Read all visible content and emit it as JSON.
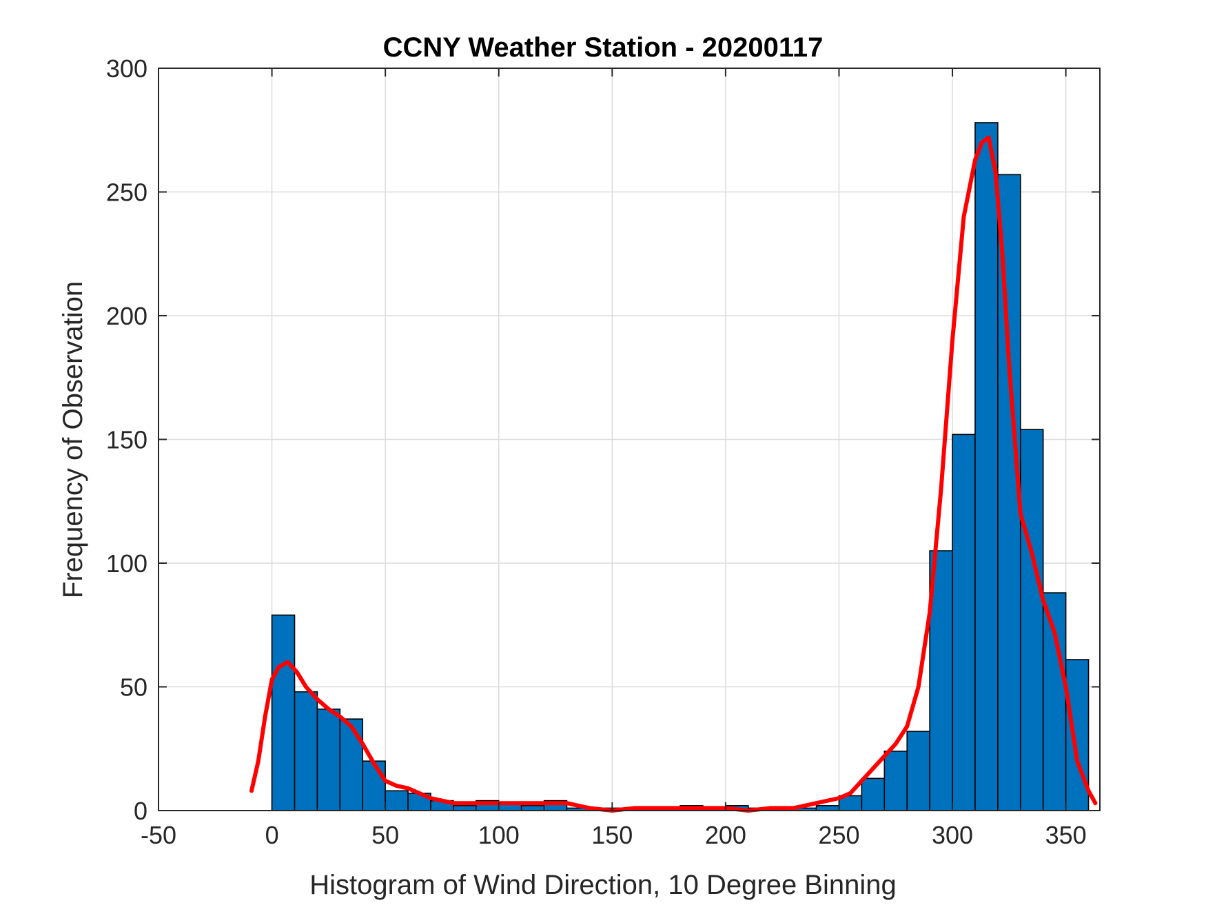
{
  "chart_data": {
    "type": "bar",
    "title": "CCNY Weather Station - 20200117",
    "xlabel": "Histogram of Wind Direction, 10 Degree Binning",
    "ylabel": "Frequency of Observation",
    "xlim": [
      -50,
      365
    ],
    "ylim": [
      0,
      300
    ],
    "xticks": [
      -50,
      0,
      50,
      100,
      150,
      200,
      250,
      300,
      350
    ],
    "yticks": [
      0,
      50,
      100,
      150,
      200,
      250,
      300
    ],
    "grid": true,
    "bin_width": 10,
    "bins": [
      {
        "x0": 0,
        "x1": 10,
        "value": 79
      },
      {
        "x0": 10,
        "x1": 20,
        "value": 48
      },
      {
        "x0": 20,
        "x1": 30,
        "value": 41
      },
      {
        "x0": 30,
        "x1": 40,
        "value": 37
      },
      {
        "x0": 40,
        "x1": 50,
        "value": 20
      },
      {
        "x0": 50,
        "x1": 60,
        "value": 8
      },
      {
        "x0": 60,
        "x1": 70,
        "value": 7
      },
      {
        "x0": 70,
        "x1": 80,
        "value": 4
      },
      {
        "x0": 80,
        "x1": 90,
        "value": 2
      },
      {
        "x0": 90,
        "x1": 100,
        "value": 4
      },
      {
        "x0": 100,
        "x1": 110,
        "value": 3
      },
      {
        "x0": 110,
        "x1": 120,
        "value": 2
      },
      {
        "x0": 120,
        "x1": 130,
        "value": 4
      },
      {
        "x0": 130,
        "x1": 140,
        "value": 1
      },
      {
        "x0": 140,
        "x1": 150,
        "value": 1
      },
      {
        "x0": 150,
        "x1": 160,
        "value": 1
      },
      {
        "x0": 160,
        "x1": 170,
        "value": 1
      },
      {
        "x0": 170,
        "x1": 180,
        "value": 1
      },
      {
        "x0": 180,
        "x1": 190,
        "value": 2
      },
      {
        "x0": 190,
        "x1": 200,
        "value": 1
      },
      {
        "x0": 200,
        "x1": 210,
        "value": 2
      },
      {
        "x0": 210,
        "x1": 220,
        "value": 1
      },
      {
        "x0": 220,
        "x1": 230,
        "value": 1
      },
      {
        "x0": 230,
        "x1": 240,
        "value": 1
      },
      {
        "x0": 240,
        "x1": 250,
        "value": 2
      },
      {
        "x0": 250,
        "x1": 260,
        "value": 6
      },
      {
        "x0": 260,
        "x1": 270,
        "value": 13
      },
      {
        "x0": 270,
        "x1": 280,
        "value": 24
      },
      {
        "x0": 280,
        "x1": 290,
        "value": 32
      },
      {
        "x0": 290,
        "x1": 300,
        "value": 105
      },
      {
        "x0": 300,
        "x1": 310,
        "value": 152
      },
      {
        "x0": 310,
        "x1": 320,
        "value": 278
      },
      {
        "x0": 320,
        "x1": 330,
        "value": 257
      },
      {
        "x0": 330,
        "x1": 340,
        "value": 154
      },
      {
        "x0": 340,
        "x1": 350,
        "value": 88
      },
      {
        "x0": 350,
        "x1": 360,
        "value": 61
      }
    ],
    "bar_color": "#0072BD",
    "curve_color": "#FF0000",
    "curve": {
      "x": [
        -9,
        -6,
        -3,
        0,
        3,
        7,
        11,
        15,
        20,
        25,
        30,
        35,
        40,
        45,
        50,
        55,
        60,
        65,
        70,
        80,
        90,
        100,
        110,
        120,
        130,
        140,
        150,
        160,
        170,
        180,
        190,
        200,
        210,
        220,
        230,
        240,
        250,
        255,
        260,
        265,
        270,
        275,
        280,
        285,
        290,
        295,
        300,
        305,
        310,
        313,
        316,
        319,
        322,
        325,
        330,
        335,
        340,
        345,
        350,
        355,
        360,
        363
      ],
      "y": [
        8,
        20,
        38,
        53,
        58,
        60,
        56,
        50,
        45,
        41,
        38,
        34,
        27,
        19,
        12,
        10,
        9,
        7,
        5,
        3,
        3,
        3,
        3,
        3,
        3,
        1,
        0,
        1,
        1,
        1,
        1,
        1,
        0,
        1,
        1,
        3,
        5,
        7,
        12,
        17,
        22,
        27,
        34,
        50,
        80,
        130,
        190,
        240,
        263,
        270,
        272,
        258,
        225,
        180,
        120,
        104,
        85,
        72,
        50,
        20,
        8,
        3
      ]
    }
  }
}
